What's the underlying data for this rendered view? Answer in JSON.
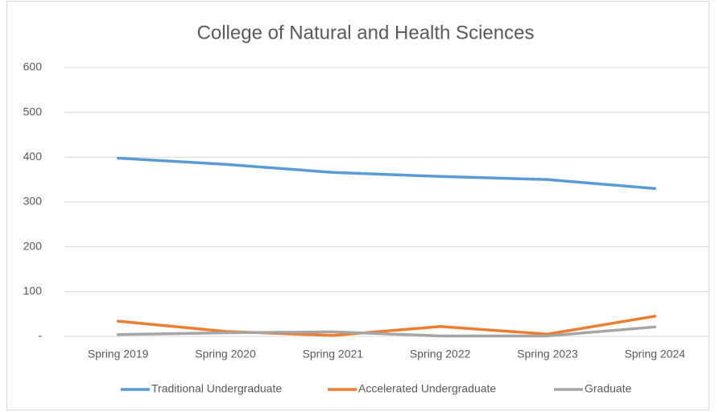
{
  "chart_data": {
    "type": "line",
    "title": "College of Natural and Health Sciences",
    "categories": [
      "Spring 2019",
      "Spring 2020",
      "Spring 2021",
      "Spring 2022",
      "Spring 2023",
      "Spring 2024"
    ],
    "series": [
      {
        "name": "Traditional Undergraduate",
        "color": "#5b9bd5",
        "values": [
          398,
          384,
          366,
          357,
          350,
          330
        ]
      },
      {
        "name": "Accelerated Undergraduate",
        "color": "#ed7d31",
        "values": [
          34,
          11,
          2,
          22,
          5,
          45
        ]
      },
      {
        "name": "Graduate",
        "color": "#a5a5a5",
        "values": [
          4,
          8,
          10,
          1,
          1,
          21
        ]
      }
    ],
    "ylim": [
      0,
      600
    ],
    "yticks": [
      {
        "value": 0,
        "label": "-"
      },
      100,
      200,
      300,
      400,
      500,
      600
    ],
    "grid": true,
    "legend": "bottom"
  }
}
